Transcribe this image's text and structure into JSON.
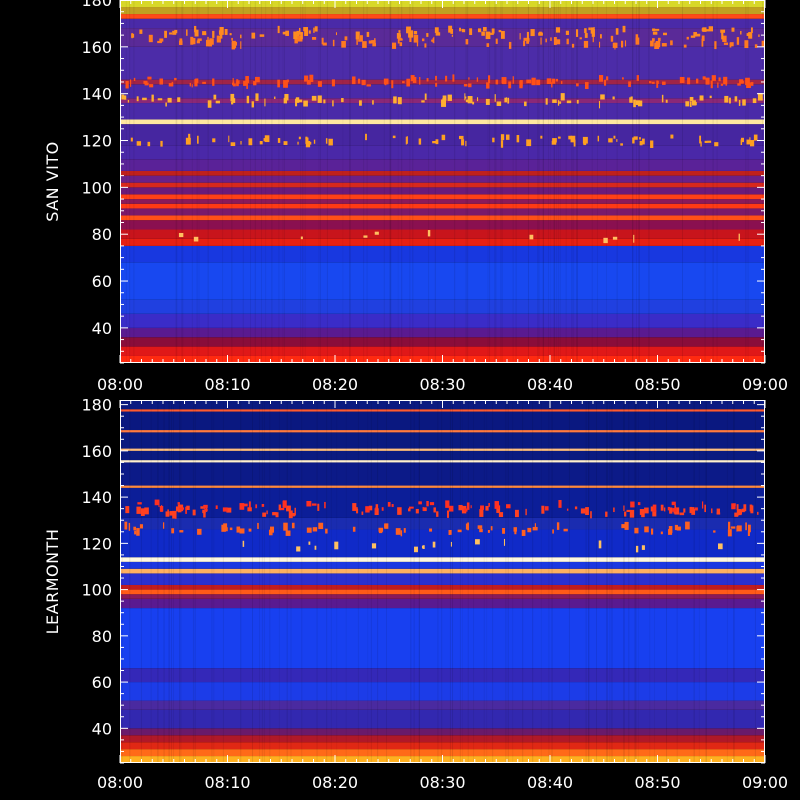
{
  "chart_data": [
    {
      "type": "heatmap",
      "station": "SAN VITO",
      "ylabel": "SAN VITO",
      "xlabel": "",
      "x_ticks": [
        "08:00",
        "08:10",
        "08:20",
        "08:30",
        "08:40",
        "08:50",
        "09:00"
      ],
      "y_ticks": [
        40,
        60,
        80,
        100,
        120,
        140,
        160,
        180
      ],
      "xlim": [
        "08:00",
        "09:00"
      ],
      "ylim": [
        25,
        180
      ],
      "bands": [
        {
          "from": 25,
          "to": 28,
          "color": "#ff2a10"
        },
        {
          "from": 28,
          "to": 32,
          "color": "#e01818"
        },
        {
          "from": 32,
          "to": 36,
          "color": "#8a0d3a"
        },
        {
          "from": 36,
          "to": 40,
          "color": "#5a1a90"
        },
        {
          "from": 40,
          "to": 46,
          "color": "#3a2cc8"
        },
        {
          "from": 46,
          "to": 52,
          "color": "#2040e0"
        },
        {
          "from": 52,
          "to": 68,
          "color": "#1848f0"
        },
        {
          "from": 68,
          "to": 75,
          "color": "#1838e0"
        },
        {
          "from": 75,
          "to": 78,
          "color": "#e82012"
        },
        {
          "from": 78,
          "to": 82,
          "color": "#c8141c"
        },
        {
          "from": 82,
          "to": 86,
          "color": "#8a1050"
        },
        {
          "from": 86,
          "to": 88,
          "color": "#ff5018"
        },
        {
          "from": 88,
          "to": 91,
          "color": "#7a1a6a"
        },
        {
          "from": 91,
          "to": 93,
          "color": "#ff3a14"
        },
        {
          "from": 93,
          "to": 95,
          "color": "#8a1a5a"
        },
        {
          "from": 95,
          "to": 97,
          "color": "#ff4016"
        },
        {
          "from": 97,
          "to": 100,
          "color": "#6a1a7a"
        },
        {
          "from": 100,
          "to": 102,
          "color": "#d8281c"
        },
        {
          "from": 102,
          "to": 105,
          "color": "#6a2088"
        },
        {
          "from": 105,
          "to": 107,
          "color": "#c0201c"
        },
        {
          "from": 107,
          "to": 112,
          "color": "#5a2298"
        },
        {
          "from": 112,
          "to": 118,
          "color": "#4a28a8"
        },
        {
          "from": 118,
          "to": 127,
          "color": "#4626a0"
        },
        {
          "from": 127,
          "to": 129,
          "color": "#ffe8a0"
        },
        {
          "from": 129,
          "to": 136,
          "color": "#4a2aa8"
        },
        {
          "from": 136,
          "to": 138,
          "color": "#8a2878"
        },
        {
          "from": 138,
          "to": 144,
          "color": "#4a2aa8"
        },
        {
          "from": 144,
          "to": 146,
          "color": "#a02448"
        },
        {
          "from": 146,
          "to": 160,
          "color": "#4c2ca8"
        },
        {
          "from": 160,
          "to": 168,
          "color": "#5a2a98"
        },
        {
          "from": 168,
          "to": 172,
          "color": "#4a2aa8"
        },
        {
          "from": 172,
          "to": 174,
          "color": "#ff4a18"
        },
        {
          "from": 174,
          "to": 177,
          "color": "#c0a020"
        },
        {
          "from": 177,
          "to": 180,
          "color": "#d8d828"
        }
      ],
      "speckle_rows": [
        {
          "y": 120,
          "color": "#ffa020",
          "density": 0.35
        },
        {
          "y": 137,
          "color": "#ffb030",
          "density": 0.4
        },
        {
          "y": 145,
          "color": "#ff5018",
          "density": 0.5
        },
        {
          "y": 162,
          "color": "#ff7a20",
          "density": 0.45
        },
        {
          "y": 166,
          "color": "#ff8a20",
          "density": 0.45
        },
        {
          "y": 79,
          "color": "#ffc060",
          "density": 0.05
        }
      ]
    },
    {
      "type": "heatmap",
      "station": "LEARMONTH",
      "ylabel": "LEARMONTH",
      "xlabel": "",
      "x_ticks": [
        "08:00",
        "08:10",
        "08:20",
        "08:30",
        "08:40",
        "08:50",
        "09:00"
      ],
      "y_ticks": [
        40,
        60,
        80,
        100,
        120,
        140,
        160,
        180
      ],
      "xlim": [
        "08:00",
        "09:00"
      ],
      "ylim": [
        25,
        182
      ],
      "bands": [
        {
          "from": 25,
          "to": 28,
          "color": "#ffb020"
        },
        {
          "from": 28,
          "to": 31,
          "color": "#ff6a18"
        },
        {
          "from": 31,
          "to": 34,
          "color": "#e02814"
        },
        {
          "from": 34,
          "to": 37,
          "color": "#b01828"
        },
        {
          "from": 37,
          "to": 40,
          "color": "#6a1a6a"
        },
        {
          "from": 40,
          "to": 48,
          "color": "#3228b0"
        },
        {
          "from": 48,
          "to": 52,
          "color": "#4a2aa0"
        },
        {
          "from": 52,
          "to": 60,
          "color": "#1c3ce8"
        },
        {
          "from": 60,
          "to": 66,
          "color": "#3428b8"
        },
        {
          "from": 66,
          "to": 92,
          "color": "#1840f0"
        },
        {
          "from": 92,
          "to": 96,
          "color": "#5a1a90"
        },
        {
          "from": 96,
          "to": 98,
          "color": "#8a1a5a"
        },
        {
          "from": 98,
          "to": 100,
          "color": "#ff5a18"
        },
        {
          "from": 100,
          "to": 102,
          "color": "#c01c20"
        },
        {
          "from": 102,
          "to": 107,
          "color": "#2a30d0"
        },
        {
          "from": 107,
          "to": 109,
          "color": "#ffb060"
        },
        {
          "from": 109,
          "to": 112,
          "color": "#1c38e0"
        },
        {
          "from": 112,
          "to": 114,
          "color": "#fff8e0"
        },
        {
          "from": 114,
          "to": 126,
          "color": "#102ac8"
        },
        {
          "from": 126,
          "to": 131,
          "color": "#1a2cb0"
        },
        {
          "from": 131,
          "to": 144,
          "color": "#0c1e98"
        },
        {
          "from": 144,
          "to": 145,
          "color": "#ff8a40"
        },
        {
          "from": 145,
          "to": 155,
          "color": "#0c1a88"
        },
        {
          "from": 155,
          "to": 156,
          "color": "#fff0d0"
        },
        {
          "from": 156,
          "to": 160,
          "color": "#0a1a80"
        },
        {
          "from": 160,
          "to": 161,
          "color": "#ffc080"
        },
        {
          "from": 161,
          "to": 168,
          "color": "#0a1a80"
        },
        {
          "from": 168,
          "to": 169,
          "color": "#ff7a40"
        },
        {
          "from": 169,
          "to": 177,
          "color": "#0a1880"
        },
        {
          "from": 177,
          "to": 178,
          "color": "#ff5a30"
        },
        {
          "from": 178,
          "to": 182,
          "color": "#0a1a80"
        }
      ],
      "speckle_rows": [
        {
          "y": 134,
          "color": "#ff4020",
          "density": 0.45
        },
        {
          "y": 126,
          "color": "#ff6020",
          "density": 0.35
        },
        {
          "y": 119,
          "color": "#ffc060",
          "density": 0.08
        },
        {
          "y": 136,
          "color": "#ff3020",
          "density": 0.25
        }
      ]
    }
  ]
}
